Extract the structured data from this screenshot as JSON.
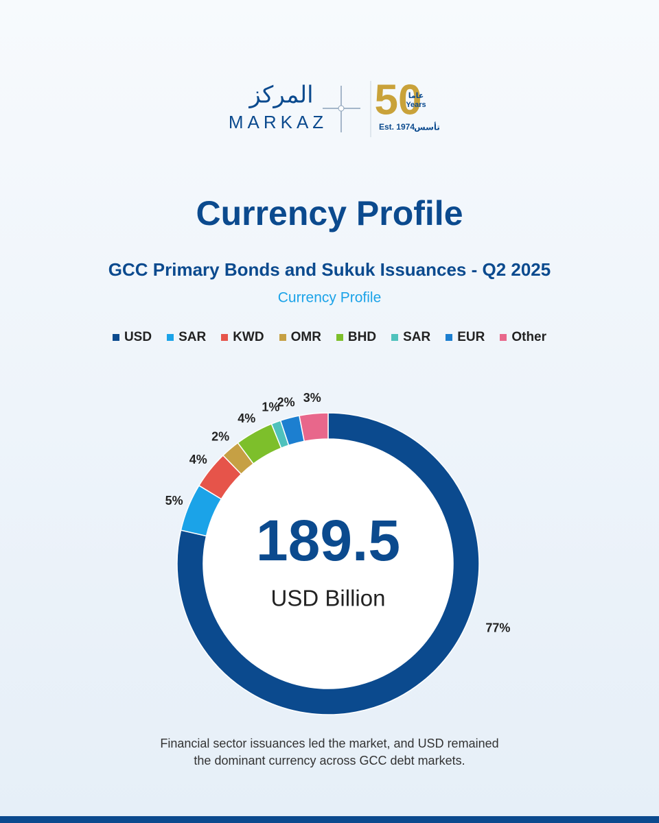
{
  "header": {
    "brand_arabic": "المركز",
    "brand": "MARKAZ",
    "anniversary": "50",
    "anniversary_arabic": "عاما",
    "anniversary_word": "Years",
    "established": "Est. 1974",
    "established_arabic": "تأسس"
  },
  "chart_data": {
    "type": "donut",
    "title": "Currency Profile",
    "subtitle": "GCC Primary Bonds and Sukuk Issuances - Q2 2025",
    "chart_label": "Currency Profile",
    "categories": [
      "USD",
      "SAR",
      "KWD",
      "OMR",
      "BHD",
      "SAR",
      "EUR",
      "Other"
    ],
    "values": [
      77,
      5,
      4,
      2,
      4,
      1,
      2,
      3
    ],
    "value_labels": [
      "77%",
      "5%",
      "4%",
      "2%",
      "4%",
      "1%",
      "2%",
      "3%"
    ],
    "colors": [
      "#0b4a8e",
      "#1ba3e8",
      "#e6544a",
      "#c6a044",
      "#7dbf2b",
      "#4fc2bc",
      "#1c7fd0",
      "#e8678b"
    ],
    "center_value": 189.5,
    "center_label": "USD Billion",
    "legend": "top"
  },
  "footer": {
    "note": [
      "Financial sector issuances led the market, and USD remained",
      "the dominant currency across GCC debt markets."
    ]
  }
}
